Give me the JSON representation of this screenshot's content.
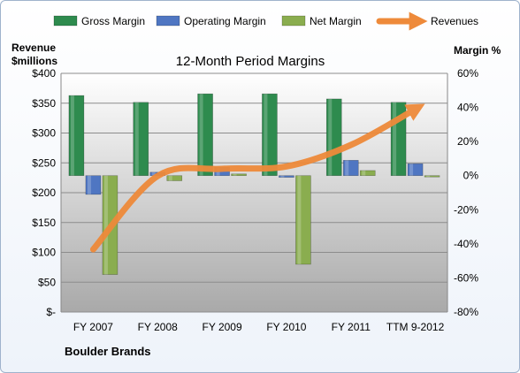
{
  "chart_data": {
    "type": "bar",
    "title": "12-Month Period Margins",
    "company": "Boulder Brands",
    "left_axis": {
      "label_line1": "Revenue",
      "label_line2": "$millions",
      "range": [
        0,
        400
      ],
      "ticks": [
        {
          "value": 0,
          "label": "$-"
        },
        {
          "value": 50,
          "label": "$50"
        },
        {
          "value": 100,
          "label": "$100"
        },
        {
          "value": 150,
          "label": "$150"
        },
        {
          "value": 200,
          "label": "$200"
        },
        {
          "value": 250,
          "label": "$250"
        },
        {
          "value": 300,
          "label": "$300"
        },
        {
          "value": 350,
          "label": "$350"
        },
        {
          "value": 400,
          "label": "$400"
        }
      ]
    },
    "right_axis": {
      "label": "Margin %",
      "range": [
        -80,
        60
      ],
      "ticks": [
        {
          "value": 60,
          "label": "60%"
        },
        {
          "value": 40,
          "label": "40%"
        },
        {
          "value": 20,
          "label": "20%"
        },
        {
          "value": 0,
          "label": "0%"
        },
        {
          "value": -20,
          "label": "-20%"
        },
        {
          "value": -40,
          "label": "-40%"
        },
        {
          "value": -60,
          "label": "-60%"
        },
        {
          "value": -80,
          "label": "-80%"
        }
      ]
    },
    "categories": [
      "FY 2007",
      "FY 2008",
      "FY 2009",
      "FY 2010",
      "FY 2011",
      "TTM 9-2012"
    ],
    "series": [
      {
        "name": "Gross Margin",
        "axis": "right",
        "kind": "bar",
        "color": "#2e8b4e",
        "values": [
          47,
          43,
          48,
          48,
          45,
          43
        ]
      },
      {
        "name": "Operating Margin",
        "axis": "right",
        "kind": "bar",
        "color": "#4f76c2",
        "values": [
          -11,
          2,
          5,
          -1,
          9,
          7
        ]
      },
      {
        "name": "Net Margin",
        "axis": "right",
        "kind": "bar",
        "color": "#8aad4f",
        "values": [
          -58,
          -3,
          1,
          -52,
          3,
          0
        ]
      },
      {
        "name": "Revenues",
        "axis": "left",
        "kind": "line",
        "color": "#ee8a3a",
        "values": [
          105,
          228,
          240,
          244,
          280,
          340
        ]
      }
    ],
    "legend_position": "top",
    "grid": true
  }
}
